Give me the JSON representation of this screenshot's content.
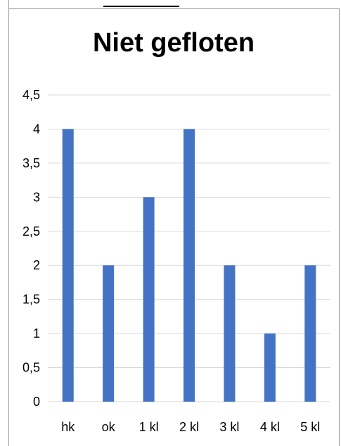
{
  "chart_data": {
    "type": "bar",
    "title": "Niet gefloten",
    "categories": [
      "hk",
      "ok",
      "1 kl",
      "2 kl",
      "3 kl",
      "4 kl",
      "5 kl"
    ],
    "values": [
      4,
      2,
      3,
      4,
      2,
      1,
      2
    ],
    "ylim": [
      0,
      4.5
    ],
    "yticks": [
      "0",
      "0,5",
      "1",
      "1,5",
      "2",
      "2,5",
      "3",
      "3,5",
      "4",
      "4,5"
    ],
    "grid": true,
    "bar_color": "#4472C4",
    "grid_color": "#d9d9d9"
  }
}
